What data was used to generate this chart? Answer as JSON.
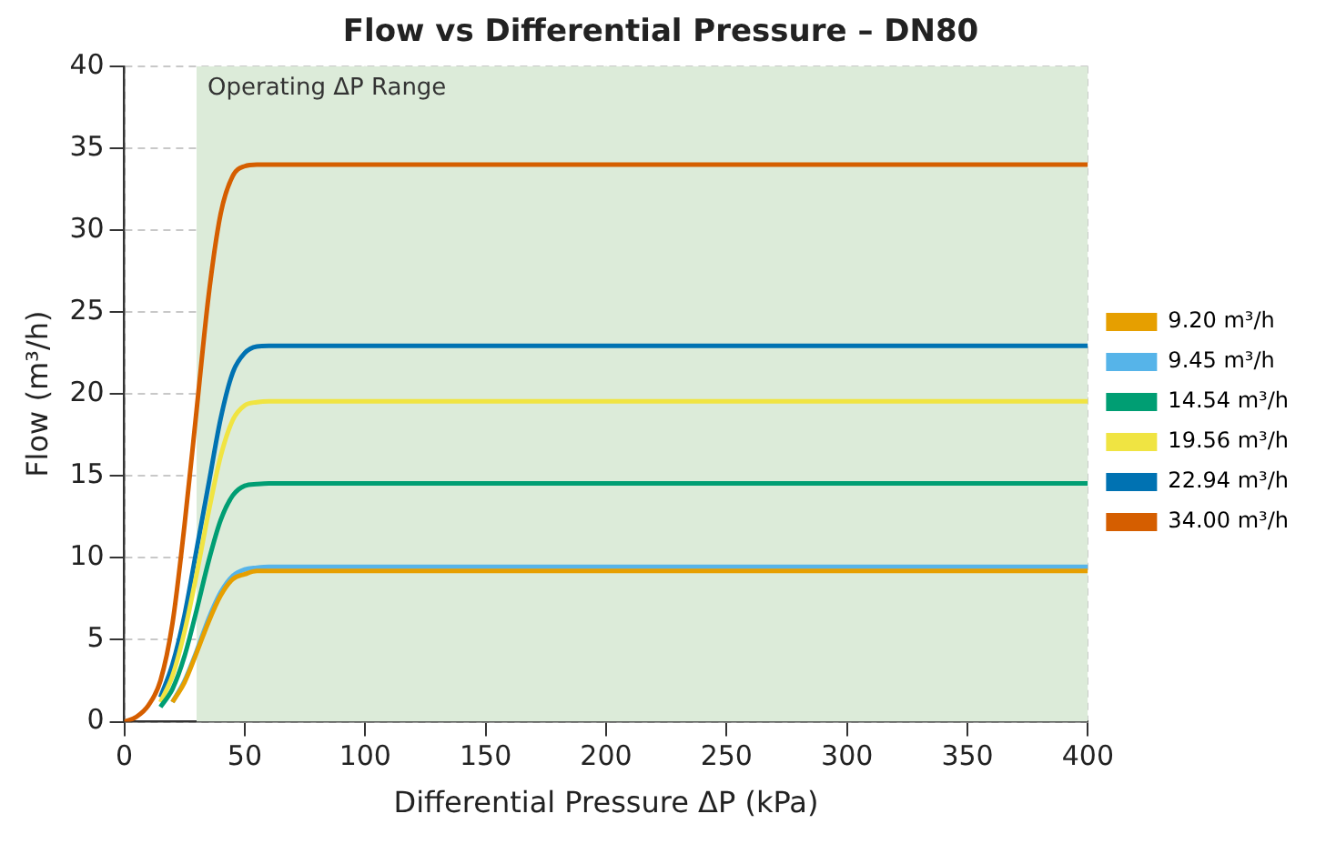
{
  "chart_data": {
    "type": "line",
    "title": "Flow vs Differential Pressure – DN80",
    "xlabel": "Differential Pressure ΔP (kPa)",
    "ylabel": "Flow (m³/h)",
    "series": [
      {
        "name": "9.20 m³/h",
        "color": "#e69f00",
        "x": [
          20,
          25,
          30,
          35,
          40,
          45,
          50,
          55,
          60,
          400
        ],
        "values": [
          1.2,
          2.4,
          4.2,
          6.1,
          7.7,
          8.7,
          9.0,
          9.2,
          9.2,
          9.2
        ]
      },
      {
        "name": "9.45 m³/h",
        "color": "#56b4e9",
        "x": [
          20,
          25,
          30,
          35,
          40,
          45,
          50,
          55,
          60,
          400
        ],
        "values": [
          1.2,
          2.5,
          4.3,
          6.3,
          7.9,
          8.9,
          9.3,
          9.4,
          9.45,
          9.45
        ]
      },
      {
        "name": "14.54 m³/h",
        "color": "#009e73",
        "x": [
          15,
          20,
          25,
          30,
          35,
          40,
          45,
          50,
          55,
          60,
          400
        ],
        "values": [
          0.9,
          2.0,
          4.0,
          6.8,
          9.8,
          12.3,
          13.8,
          14.4,
          14.5,
          14.54,
          14.54
        ]
      },
      {
        "name": "19.56 m³/h",
        "color": "#f0e442",
        "x": [
          15,
          20,
          25,
          30,
          35,
          40,
          45,
          50,
          55,
          60,
          400
        ],
        "values": [
          1.2,
          2.8,
          5.5,
          9.0,
          12.8,
          16.2,
          18.4,
          19.3,
          19.5,
          19.56,
          19.56
        ]
      },
      {
        "name": "22.94 m³/h",
        "color": "#0072b2",
        "x": [
          15,
          20,
          25,
          30,
          35,
          40,
          45,
          50,
          55,
          60,
          400
        ],
        "values": [
          1.5,
          3.5,
          6.5,
          10.5,
          14.5,
          18.5,
          21.3,
          22.5,
          22.9,
          22.94,
          22.94
        ]
      },
      {
        "name": "34.00 m³/h",
        "color": "#d55e00",
        "x": [
          0,
          5,
          10,
          15,
          20,
          25,
          30,
          35,
          40,
          45,
          50,
          55,
          60,
          400
        ],
        "values": [
          0,
          0.3,
          1.0,
          2.5,
          6.0,
          12.0,
          19.0,
          26.0,
          31.0,
          33.3,
          33.9,
          34,
          34,
          34
        ]
      }
    ],
    "bands": [
      {
        "axis": "x",
        "from": 30,
        "to": 400,
        "label": "Operating ΔP Range",
        "color": "#dcebd9"
      }
    ],
    "xlim": [
      0,
      400
    ],
    "xticks": [
      0,
      50,
      100,
      150,
      200,
      250,
      300,
      350,
      400
    ],
    "ylim": [
      0,
      40
    ],
    "yticks": [
      0,
      5,
      10,
      15,
      20,
      25,
      30,
      35,
      40
    ],
    "grid": true,
    "legend": "right",
    "marker": "none",
    "line_style": "solid"
  }
}
